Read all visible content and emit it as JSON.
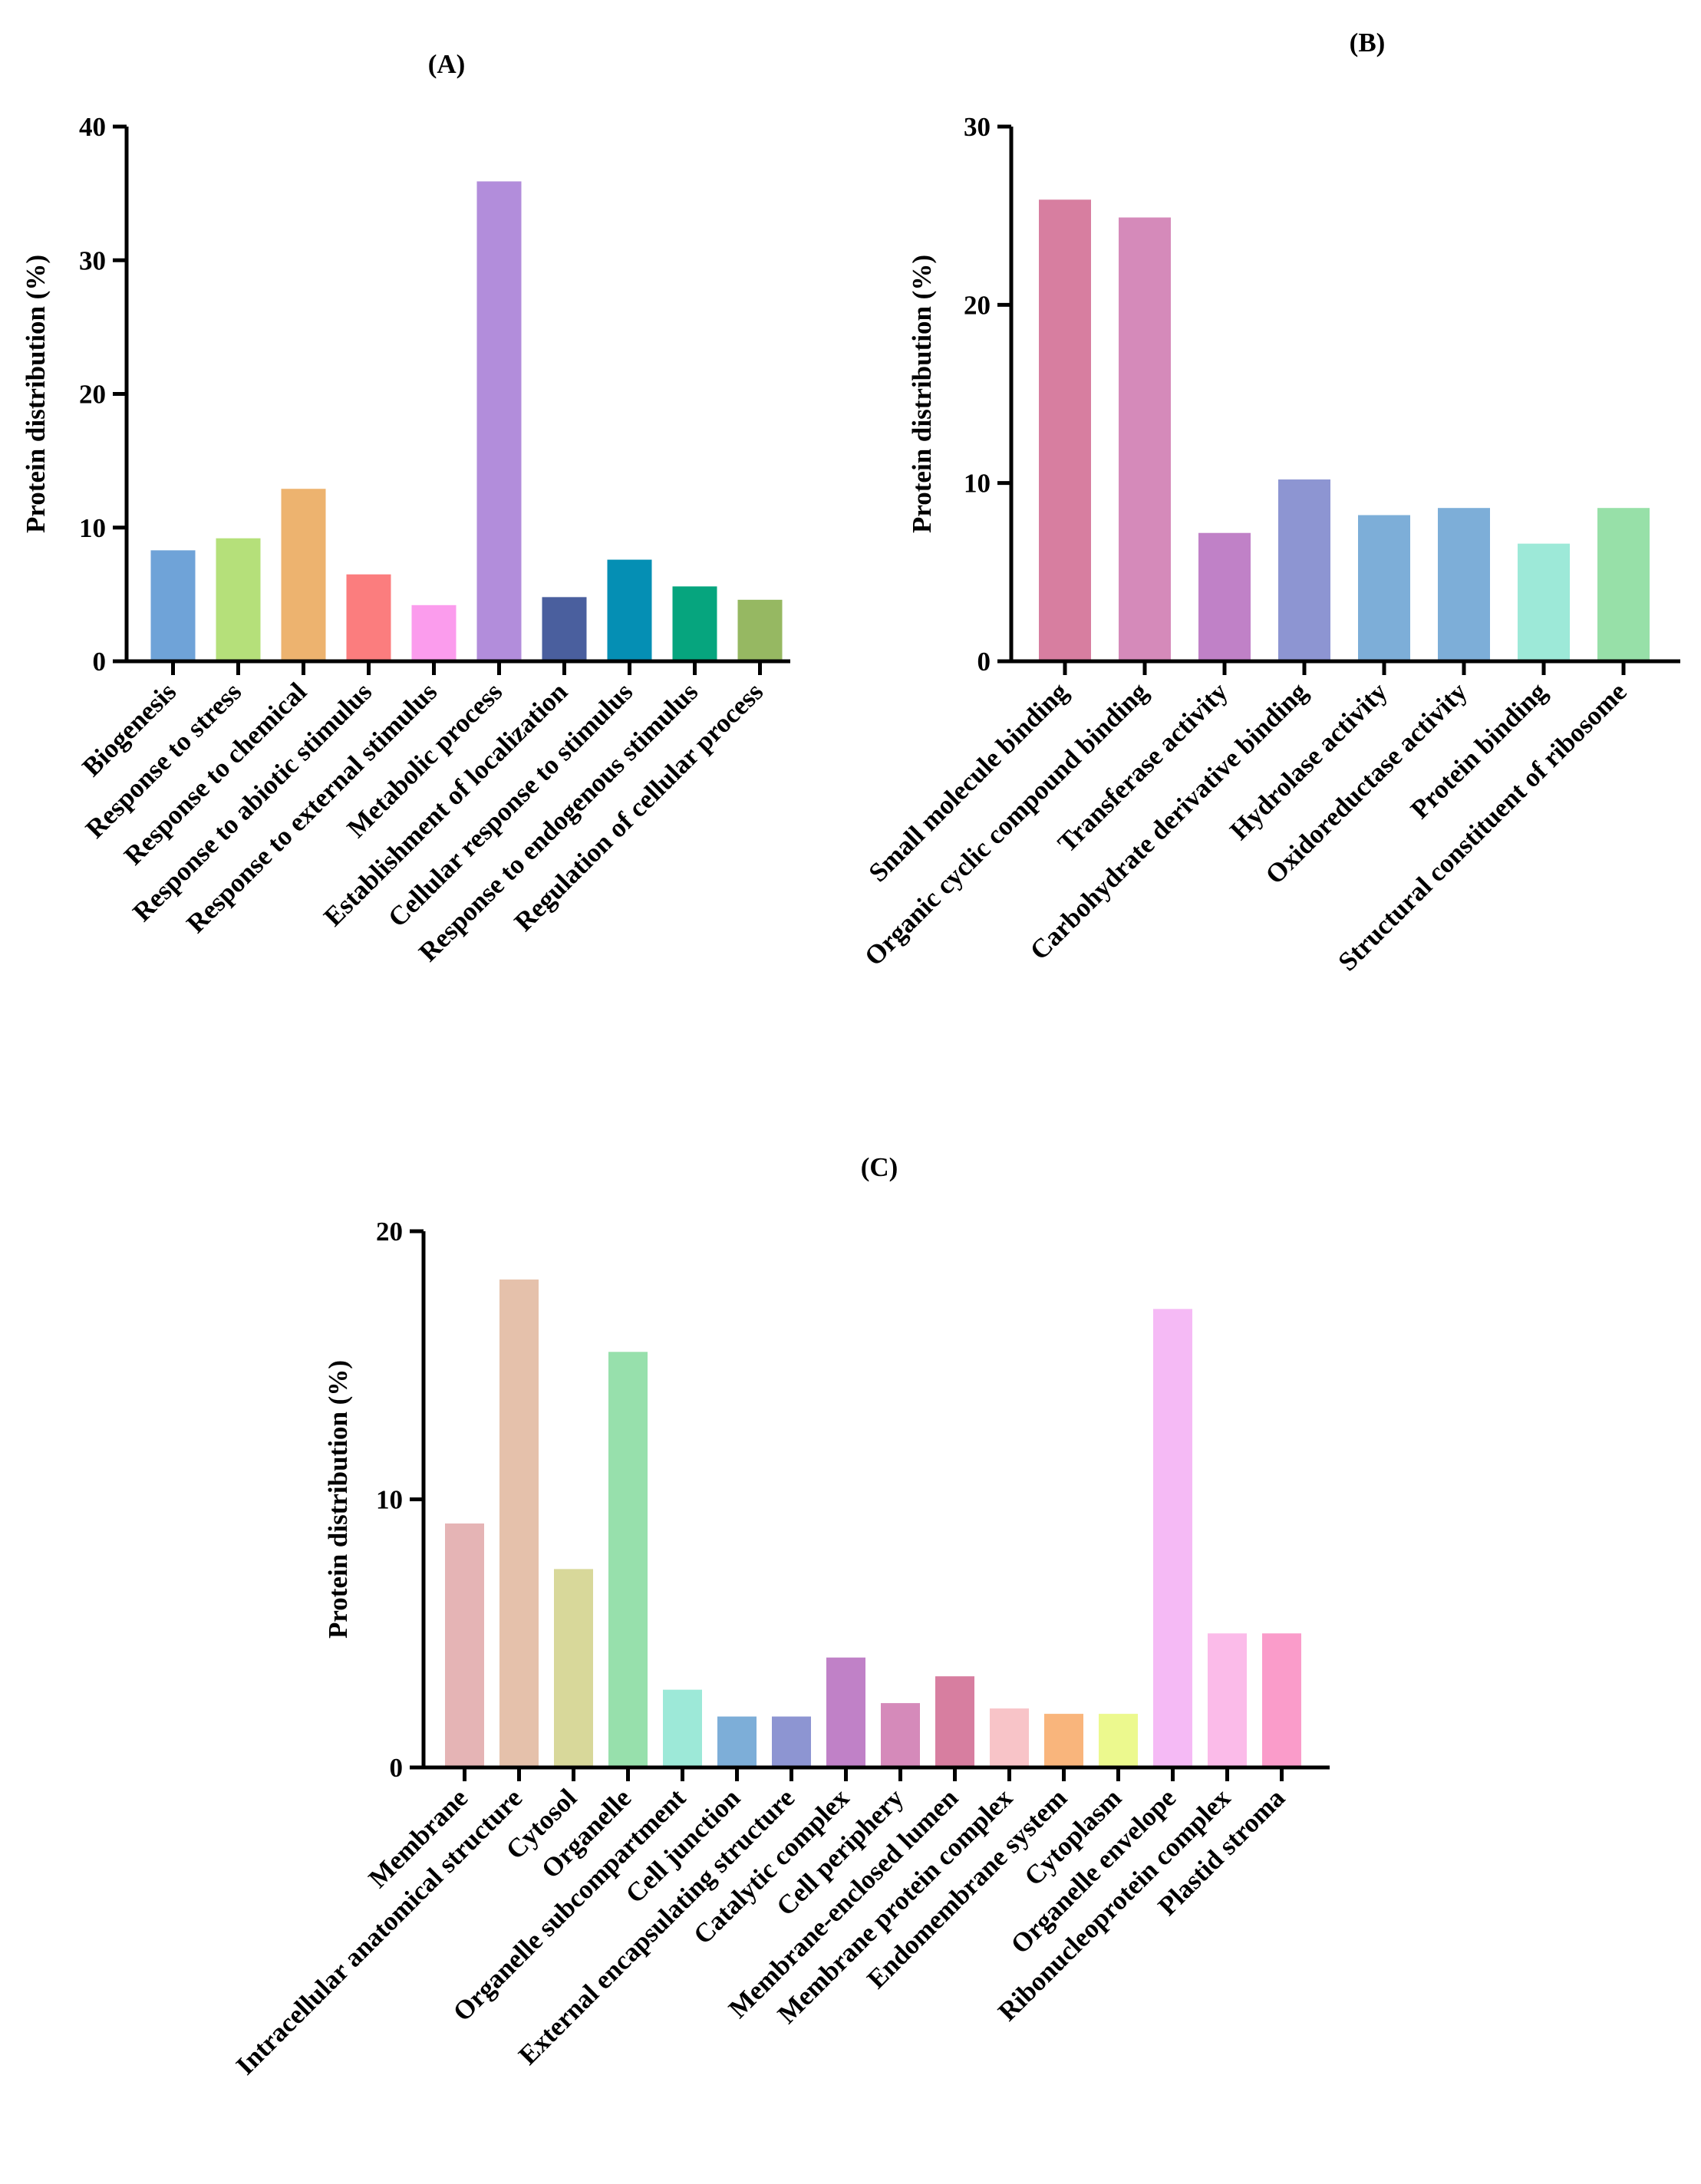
{
  "chart_data": [
    {
      "type": "bar",
      "title": "(A)",
      "ylabel": "Protein distribution (%)",
      "xlabel": "",
      "ylim": [
        0,
        40
      ],
      "yticks": [
        0,
        10,
        20,
        30,
        40
      ],
      "ytick_labels": [
        "0",
        "10",
        "20",
        "30",
        "40"
      ],
      "grid": false,
      "categories": [
        "Biogenesis",
        "Response to stress",
        "Response to chemical",
        "Response to abiotic stimulus",
        "Response to external stimulus",
        "Metabolic process",
        "Establishment of localization",
        "Cellular response to stimulus",
        "Response to endogenous stimulus",
        "Regulation of cellular process"
      ],
      "values": [
        8.3,
        9.2,
        12.9,
        6.5,
        4.2,
        35.9,
        4.8,
        7.6,
        5.6,
        4.6
      ],
      "colors": [
        "#6fa3d8",
        "#b5e07a",
        "#edb36f",
        "#fb7d7e",
        "#fb9ced",
        "#b28ddb",
        "#4a5f9e",
        "#058fb4",
        "#06a57e",
        "#96b862"
      ]
    },
    {
      "type": "bar",
      "title": "(B)",
      "ylabel": "Protein distribution (%)",
      "xlabel": "",
      "ylim": [
        0,
        30
      ],
      "yticks": [
        0,
        10,
        20,
        30
      ],
      "ytick_labels": [
        "0",
        "10",
        "20",
        "30"
      ],
      "grid": false,
      "categories": [
        "Small molecule binding",
        "Organic cyclic compound binding",
        "Transferase activity",
        "Carbohydrate derivative binding",
        "Hydrolase activity",
        "Oxidoreductase activity",
        "Protein binding",
        "Structural constituent of ribosome"
      ],
      "values": [
        25.9,
        24.9,
        7.2,
        10.2,
        8.2,
        8.6,
        6.6,
        8.6
      ],
      "colors": [
        "#d77ea0",
        "#d58aba",
        "#c081c7",
        "#8d95d2",
        "#7daed8",
        "#7daed8",
        "#9de9d8",
        "#97e0a8"
      ]
    },
    {
      "type": "bar",
      "title": "(C)",
      "ylabel": "Protein distribution (%)",
      "xlabel": "",
      "ylim": [
        0,
        20
      ],
      "yticks": [
        0,
        10,
        20
      ],
      "ytick_labels": [
        "0",
        "10",
        "20"
      ],
      "grid": false,
      "categories": [
        "Membrane",
        "Intracellular anatomical structure",
        "Cytosol",
        "Organelle",
        "Organelle subcompartment",
        "Cell junction",
        "External encapsulating structure",
        "Catalytic complex",
        "Cell periphery",
        "Membrane-enclosed lumen",
        "Membrane protein complex",
        "Endomembrane system",
        "Cytoplasm",
        "Organelle envelope",
        "Ribonucleoprotein complex",
        "Plastid stroma"
      ],
      "values": [
        9.1,
        18.2,
        7.4,
        15.5,
        2.9,
        1.9,
        1.9,
        4.1,
        2.4,
        3.4,
        2.2,
        2.0,
        2.0,
        17.1,
        5.0,
        5.0
      ],
      "colors": [
        "#e5b4b5",
        "#e5c1ab",
        "#d8d89a",
        "#97e0ac",
        "#9de9d8",
        "#7daed8",
        "#8d95d2",
        "#c081c7",
        "#d58aba",
        "#d77ea0",
        "#f8c4c8",
        "#f9b57c",
        "#ecf98e",
        "#f5baf5",
        "#fbbbe9",
        "#fa9cca"
      ]
    }
  ]
}
